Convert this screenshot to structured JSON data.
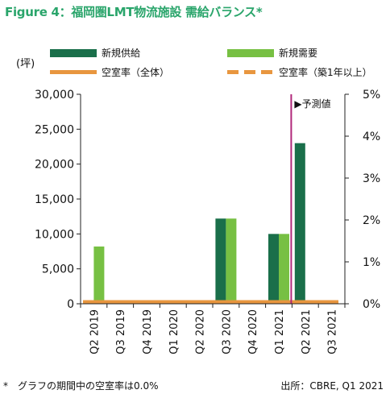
{
  "title": "Figure 4：福岡圏LMT物流施設 需給バランス*",
  "unit_label": "(坪)",
  "footnote": "*　グラフの期間中の空室率は0.0%",
  "source": "出所：CBRE, Q1 2021",
  "forecast_label": "▶予測値",
  "colors": {
    "new_supply": "#1a6f4a",
    "new_demand": "#77c043",
    "vacancy": "#e8963f",
    "forecast_line": "#b0277a",
    "title": "#2aa56b"
  },
  "legend": [
    {
      "key": "new_supply",
      "label": "新規供給",
      "kind": "box"
    },
    {
      "key": "new_demand",
      "label": "新規需要",
      "kind": "box"
    },
    {
      "key": "vacancy_all",
      "label": "空室率（全体）",
      "kind": "line"
    },
    {
      "key": "vacancy_new",
      "label": "空室率（築1年以上）",
      "kind": "dash"
    }
  ],
  "chart_data": {
    "type": "bar",
    "categories": [
      "Q2 2019",
      "Q3 2019",
      "Q4 2019",
      "Q1 2020",
      "Q2 2020",
      "Q3 2020",
      "Q4 2020",
      "Q1 2021",
      "Q2 2021",
      "Q3 2021"
    ],
    "series": [
      {
        "name": "新規供給",
        "values": [
          0,
          0,
          0,
          0,
          0,
          12200,
          0,
          10000,
          23000,
          0
        ]
      },
      {
        "name": "新規需要",
        "values": [
          8200,
          0,
          0,
          0,
          0,
          12200,
          0,
          10000,
          0,
          0
        ]
      },
      {
        "name": "空室率（全体）",
        "axis": "right",
        "values": [
          0,
          0,
          0,
          0,
          0,
          0,
          0,
          0,
          0,
          0
        ]
      }
    ],
    "ylim": [
      0,
      30000
    ],
    "yticks": [
      "0",
      "5,000",
      "10,000",
      "15,000",
      "20,000",
      "25,000",
      "30,000"
    ],
    "y2lim": [
      0,
      5
    ],
    "y2ticks": [
      "0%",
      "1%",
      "2%",
      "3%",
      "4%",
      "5%"
    ],
    "forecast_start_after": "Q1 2021"
  }
}
